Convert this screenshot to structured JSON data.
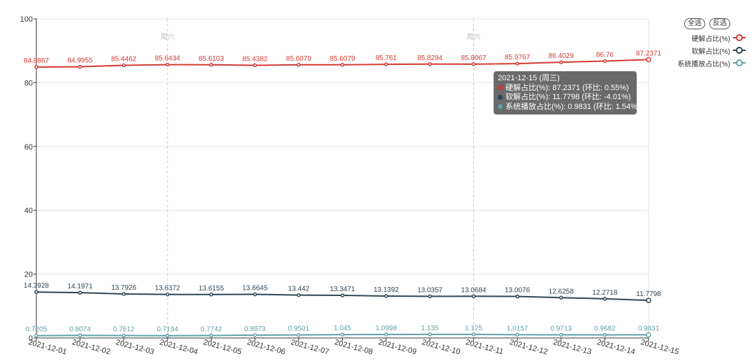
{
  "chart_data": {
    "type": "line",
    "categories": [
      "2021-12-01",
      "2021-12-02",
      "2021-12-03",
      "2021-12-04",
      "2021-12-05",
      "2021-12-06",
      "2021-12-07",
      "2021-12-08",
      "2021-12-09",
      "2021-12-10",
      "2021-12-11",
      "2021-12-12",
      "2021-12-13",
      "2021-12-14",
      "2021-12-15"
    ],
    "ylim": [
      0,
      100
    ],
    "yticks": [
      0,
      20,
      40,
      60,
      80,
      100
    ],
    "grid": true,
    "weekend_markers": [
      {
        "category": "2021-12-04",
        "label": "周六"
      },
      {
        "category": "2021-12-11",
        "label": "周六"
      }
    ],
    "legend_position": "top-right",
    "series": [
      {
        "name": "硬解占比(%)",
        "color": "#d33a34",
        "values": [
          84.8867,
          84.9955,
          85.4462,
          85.6434,
          85.6103,
          85.4382,
          85.6079,
          85.6079,
          85.761,
          85.8294,
          85.8067,
          85.9767,
          86.4029,
          86.76,
          87.2371
        ],
        "labels": [
          "84.8867",
          "84.9955",
          "85.4462",
          "85.6434",
          "85.6103",
          "85.4382",
          "85.6079",
          "85.6079",
          "85.761",
          "85.8294",
          "85.8067",
          "85.9767",
          "86.4029",
          "86.76",
          "87.2371"
        ]
      },
      {
        "name": "软解占比(%)",
        "color": "#2f4554",
        "values": [
          14.3928,
          14.1971,
          13.7926,
          13.6372,
          13.6155,
          13.6645,
          13.442,
          13.3471,
          13.1392,
          13.0357,
          13.0684,
          13.0076,
          12.6258,
          12.2718,
          11.7798
        ],
        "labels": [
          "14.3928",
          "14.1971",
          "13.7926",
          "13.6372",
          "13.6155",
          "13.6645",
          "13.442",
          "13.3471",
          "13.1392",
          "13.0357",
          "13.0684",
          "13.0076",
          "12.6258",
          "12.2718",
          "11.7798"
        ]
      },
      {
        "name": "系统播放占比(%)",
        "color": "#61a0a8",
        "values": [
          0.7205,
          0.8074,
          0.7612,
          0.7194,
          0.7742,
          0.8973,
          0.9501,
          1.045,
          1.0998,
          1.135,
          1.125,
          1.0157,
          0.9713,
          0.9682,
          0.9831
        ],
        "labels": [
          "0.7205",
          "0.8074",
          "0.7612",
          "0.7194",
          "0.7742",
          "0.8973",
          "0.9501",
          "1.045",
          "1.0998",
          "1.135",
          "1.125",
          "1.0157",
          "0.9713",
          "0.9682",
          "0.9831"
        ]
      }
    ]
  },
  "legend": {
    "select_all": "全选",
    "invert": "反选"
  },
  "tooltip": {
    "title": "2021-12-15 (周三)",
    "rows": [
      {
        "text": "硬解占比(%): 87.2371 (环比: 0.55%)",
        "color": "#d33a34"
      },
      {
        "text": "软解占比(%): 11.7798 (环比: -4.01%)",
        "color": "#2f4554"
      },
      {
        "text": "系统播放占比(%): 0.9831 (环比: 1.54%)",
        "color": "#61a0a8"
      }
    ]
  }
}
